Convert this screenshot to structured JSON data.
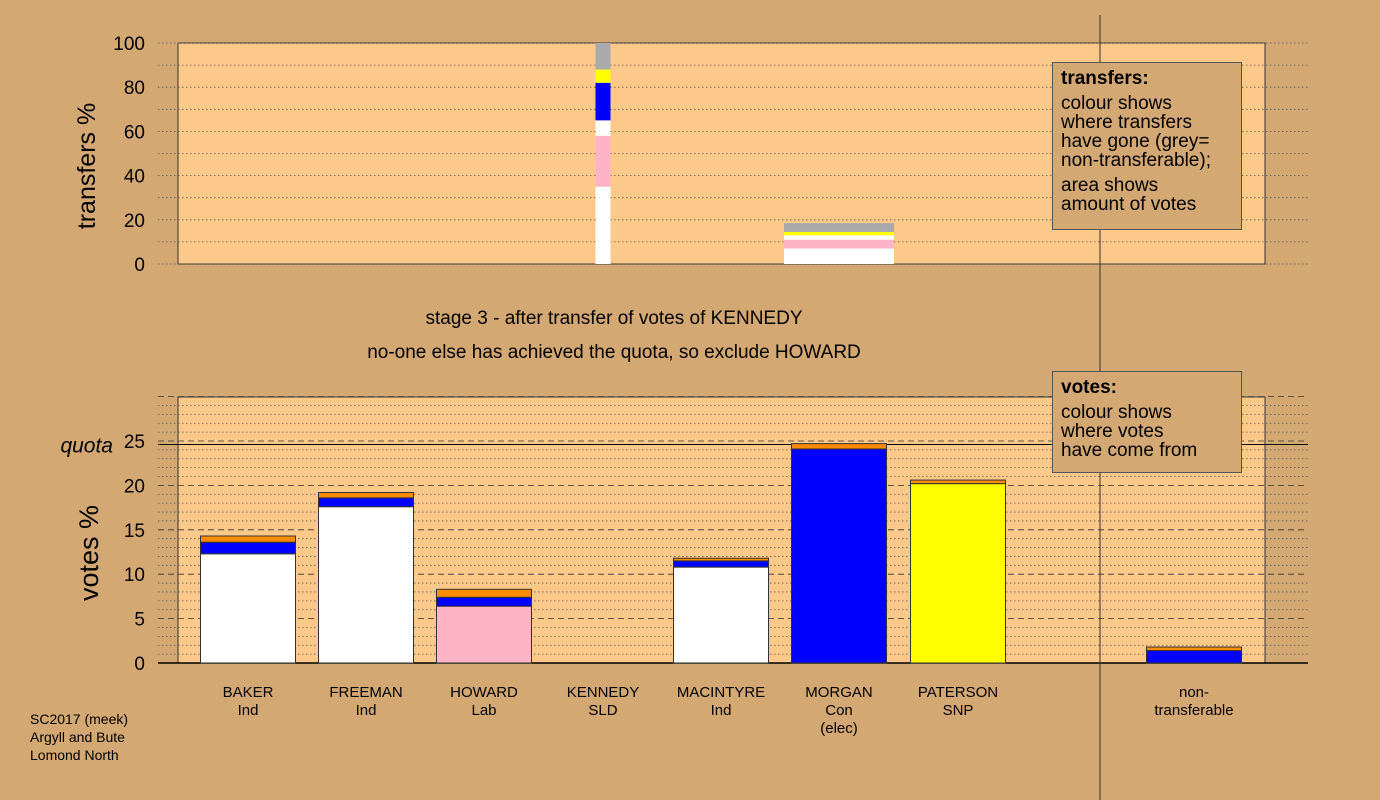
{
  "chart_data": [
    {
      "type": "bar",
      "stacked": true,
      "panel": "transfers",
      "ylabel": "transfers %",
      "ylim": [
        0,
        100
      ],
      "yticks": [
        0,
        20,
        40,
        60,
        80,
        100
      ],
      "columns": [
        {
          "category": "KENNEDY",
          "width_pct": 100,
          "segments": [
            {
              "color": "#ffffff",
              "value": 35
            },
            {
              "color": "#ffb3c6",
              "value": 23
            },
            {
              "color": "#ffffff",
              "value": 7
            },
            {
              "color": "#0000ff",
              "value": 17
            },
            {
              "color": "#ffff00",
              "value": 6
            },
            {
              "color": "#aaaaaa",
              "value": 12
            }
          ]
        },
        {
          "category": "MORGAN",
          "width_pct": 100,
          "segments": [
            {
              "color": "#ffffff",
              "value": 7
            },
            {
              "color": "#ffb3c6",
              "value": 4
            },
            {
              "color": "#ffffff",
              "value": 2
            },
            {
              "color": "#ffff00",
              "value": 1.5
            },
            {
              "color": "#aaaaaa",
              "value": 4
            }
          ]
        }
      ]
    },
    {
      "type": "bar",
      "stacked": true,
      "panel": "votes",
      "ylabel": "votes %",
      "ylim": [
        0,
        30
      ],
      "yticks": [
        0,
        5,
        10,
        15,
        20,
        25
      ],
      "quota": 24.6,
      "quota_label": "quota",
      "categories": [
        {
          "name": "BAKER",
          "party": "Ind"
        },
        {
          "name": "FREEMAN",
          "party": "Ind"
        },
        {
          "name": "HOWARD",
          "party": "Lab"
        },
        {
          "name": "KENNEDY",
          "party": "SLD"
        },
        {
          "name": "MACINTYRE",
          "party": "Ind"
        },
        {
          "name": "MORGAN",
          "party": "Con",
          "note": "(elec)"
        },
        {
          "name": "PATERSON",
          "party": "SNP"
        }
      ],
      "bars": [
        [
          {
            "color": "#ffffff",
            "value": 12.3
          },
          {
            "color": "#0000ff",
            "value": 1.3
          },
          {
            "color": "#ff8c00",
            "value": 0.7
          }
        ],
        [
          {
            "color": "#ffffff",
            "value": 17.6
          },
          {
            "color": "#0000ff",
            "value": 1.0
          },
          {
            "color": "#ff8c00",
            "value": 0.6
          }
        ],
        [
          {
            "color": "#ffb3c6",
            "value": 6.4
          },
          {
            "color": "#0000ff",
            "value": 1.0
          },
          {
            "color": "#ff8c00",
            "value": 0.9
          }
        ],
        [],
        [
          {
            "color": "#ffffff",
            "value": 10.8
          },
          {
            "color": "#0000ff",
            "value": 0.7
          },
          {
            "color": "#ff8c00",
            "value": 0.3
          }
        ],
        [
          {
            "color": "#0000ff",
            "value": 24.1
          },
          {
            "color": "#ff8c00",
            "value": 0.6
          }
        ],
        [
          {
            "color": "#ffff00",
            "value": 20.2
          },
          {
            "color": "#ff8c00",
            "value": 0.4
          }
        ]
      ],
      "nontransferable": {
        "label_line1": "non-",
        "label_line2": "transferable",
        "segments": [
          {
            "color": "#0000ff",
            "value": 1.4
          },
          {
            "color": "#ff8c00",
            "value": 0.4
          }
        ]
      }
    }
  ],
  "stage_title": "stage 3 - after transfer of votes of KENNEDY",
  "stage_subtitle": "no-one else has achieved the quota, so exclude HOWARD",
  "legend_transfers": {
    "title": "transfers:",
    "para1": "colour shows where transfers have gone (grey= non-transferable);",
    "para1_lines": [
      "colour shows",
      "where transfers",
      "have gone (grey=",
      "non-transferable);"
    ],
    "para2_lines": [
      "area shows",
      "amount of votes"
    ]
  },
  "legend_votes": {
    "title": "votes:",
    "lines": [
      "colour shows",
      "where votes",
      "have come from"
    ]
  },
  "footer": {
    "line1": "SC2017 (meek)",
    "line2": "Argyll and Bute",
    "line3": "Lomond North"
  },
  "colors": {
    "background": "#d3a873",
    "plot_area": "#fdc98a",
    "white": "#ffffff",
    "pink": "#ffb3c6",
    "blue": "#0000ff",
    "yellow": "#ffff00",
    "orange": "#ff8c00",
    "grey": "#aaaaaa"
  }
}
